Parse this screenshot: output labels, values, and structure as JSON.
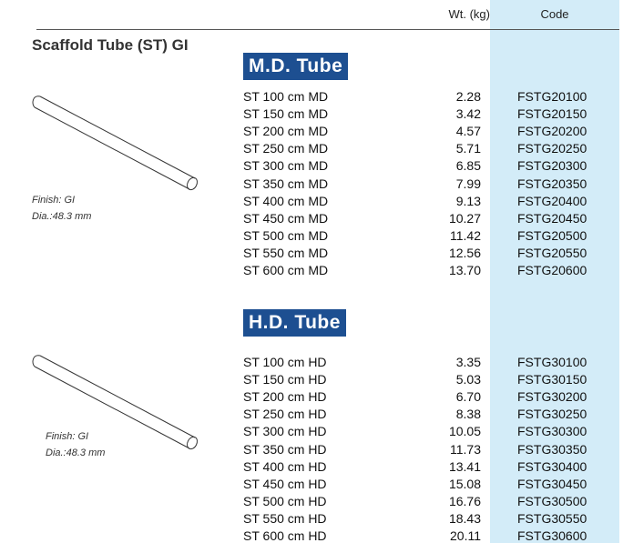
{
  "header": {
    "weight": "Wt. (kg)",
    "code": "Code"
  },
  "title": "Scaffold Tube (ST) GI",
  "sections": [
    {
      "label": "M.D. Tube",
      "finish": "Finish: GI",
      "dia": "Dia.:48.3 mm",
      "rows": [
        [
          "ST 100 cm MD",
          "2.28",
          "FSTG20100"
        ],
        [
          "ST 150 cm MD",
          "3.42",
          "FSTG20150"
        ],
        [
          "ST 200 cm MD",
          "4.57",
          "FSTG20200"
        ],
        [
          "ST 250 cm MD",
          "5.71",
          "FSTG20250"
        ],
        [
          "ST 300 cm MD",
          "6.85",
          "FSTG20300"
        ],
        [
          "ST 350 cm MD",
          "7.99",
          "FSTG20350"
        ],
        [
          "ST 400 cm MD",
          "9.13",
          "FSTG20400"
        ],
        [
          "ST 450 cm MD",
          "10.27",
          "FSTG20450"
        ],
        [
          "ST 500 cm MD",
          "11.42",
          "FSTG20500"
        ],
        [
          "ST 550 cm MD",
          "12.56",
          "FSTG20550"
        ],
        [
          "ST 600 cm MD",
          "13.70",
          "FSTG20600"
        ]
      ]
    },
    {
      "label": "H.D. Tube",
      "finish": "Finish: GI",
      "dia": "Dia.:48.3 mm",
      "rows": [
        [
          "ST 100 cm HD",
          "3.35",
          "FSTG30100"
        ],
        [
          "ST 150 cm HD",
          "5.03",
          "FSTG30150"
        ],
        [
          "ST 200 cm HD",
          "6.70",
          "FSTG30200"
        ],
        [
          "ST 250 cm HD",
          "8.38",
          "FSTG30250"
        ],
        [
          "ST 300 cm HD",
          "10.05",
          "FSTG30300"
        ],
        [
          "ST 350 cm HD",
          "11.73",
          "FSTG30350"
        ],
        [
          "ST 400 cm HD",
          "13.41",
          "FSTG30400"
        ],
        [
          "ST 450 cm HD",
          "15.08",
          "FSTG30450"
        ],
        [
          "ST 500 cm HD",
          "16.76",
          "FSTG30500"
        ],
        [
          "ST 550 cm HD",
          "18.43",
          "FSTG30550"
        ],
        [
          "ST 600 cm HD",
          "20.11",
          "FSTG30600"
        ]
      ]
    }
  ]
}
